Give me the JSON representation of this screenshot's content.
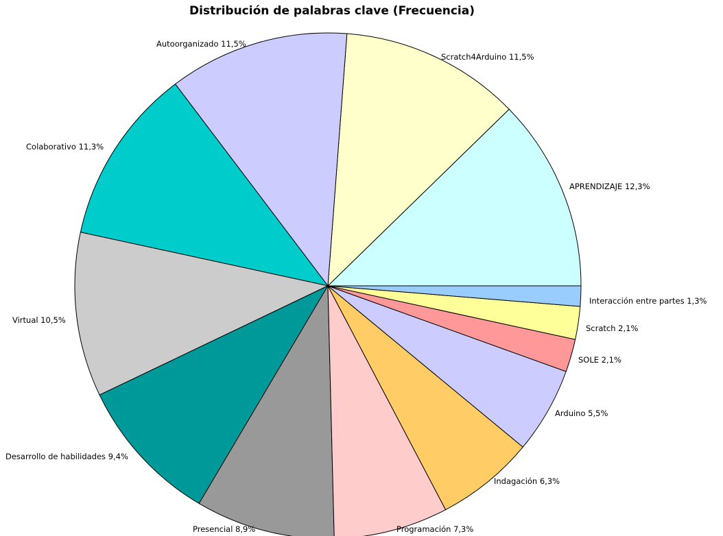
{
  "chart_data": {
    "type": "pie",
    "title": "Distribución de palabras clave (Frecuencia)",
    "slices": [
      {
        "label": "APRENDIZAJE",
        "value": 12.3,
        "display": "12,3%",
        "color": "#CCFFFF"
      },
      {
        "label": "Scratch4Arduino",
        "value": 11.5,
        "display": "11,5%",
        "color": "#FFFFCC"
      },
      {
        "label": "Autoorganizado",
        "value": 11.5,
        "display": "11,5%",
        "color": "#CCCCFF"
      },
      {
        "label": "Colaborativo",
        "value": 11.3,
        "display": "11,3%",
        "color": "#00CCCC"
      },
      {
        "label": "Virtual",
        "value": 10.5,
        "display": "10,5%",
        "color": "#CCCCCC"
      },
      {
        "label": "Desarrollo de habilidades",
        "value": 9.4,
        "display": "9,4%",
        "color": "#009999"
      },
      {
        "label": "Presencial",
        "value": 8.9,
        "display": "8,9%",
        "color": "#999999"
      },
      {
        "label": "Programación",
        "value": 7.3,
        "display": "7,3%",
        "color": "#FFCCCC"
      },
      {
        "label": "Indagación",
        "value": 6.3,
        "display": "6,3%",
        "color": "#FFCC66"
      },
      {
        "label": "Arduino",
        "value": 5.5,
        "display": "5,5%",
        "color": "#CCCCFF"
      },
      {
        "label": "SOLE",
        "value": 2.1,
        "display": "2,1%",
        "color": "#FF9999"
      },
      {
        "label": "Scratch",
        "value": 2.1,
        "display": "2,1%",
        "color": "#FFFF99"
      },
      {
        "label": "Interacción entre partes",
        "value": 1.3,
        "display": "1,3%",
        "color": "#99CCFF"
      }
    ]
  }
}
